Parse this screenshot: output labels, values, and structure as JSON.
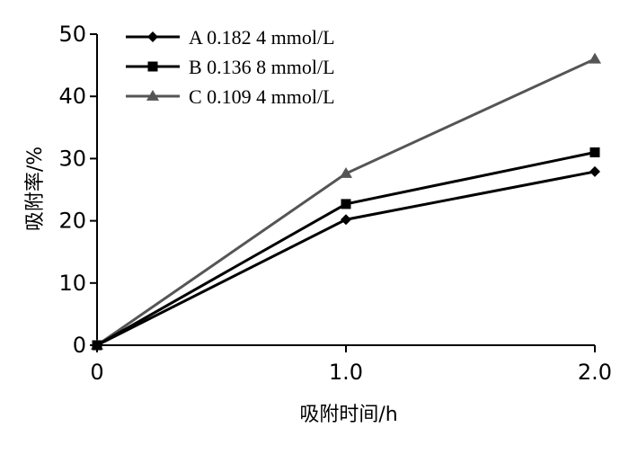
{
  "chart_data": {
    "type": "line",
    "xlabel": "吸附时间/h",
    "ylabel": "吸附率/%",
    "x": [
      0,
      1.0,
      2.0
    ],
    "x_tick_labels": [
      "0",
      "1.0",
      "2.0"
    ],
    "ylim": [
      0,
      50
    ],
    "y_ticks": [
      0,
      10,
      20,
      30,
      40,
      50
    ],
    "y_tick_labels": [
      "0",
      "10",
      "20",
      "30",
      "40",
      "50"
    ],
    "grid": false,
    "legend_position": "top-left",
    "series": [
      {
        "name": "A 0.182 4 mmol/L",
        "values": [
          0,
          20.2,
          27.9
        ],
        "marker": "diamond",
        "color": "#000000"
      },
      {
        "name": "B 0.136 8 mmol/L",
        "values": [
          0,
          22.7,
          31.0
        ],
        "marker": "square",
        "color": "#000000"
      },
      {
        "name": "C 0.109 4 mmol/L",
        "values": [
          0,
          27.6,
          46.0
        ],
        "marker": "triangle",
        "color": "#555555"
      }
    ]
  }
}
